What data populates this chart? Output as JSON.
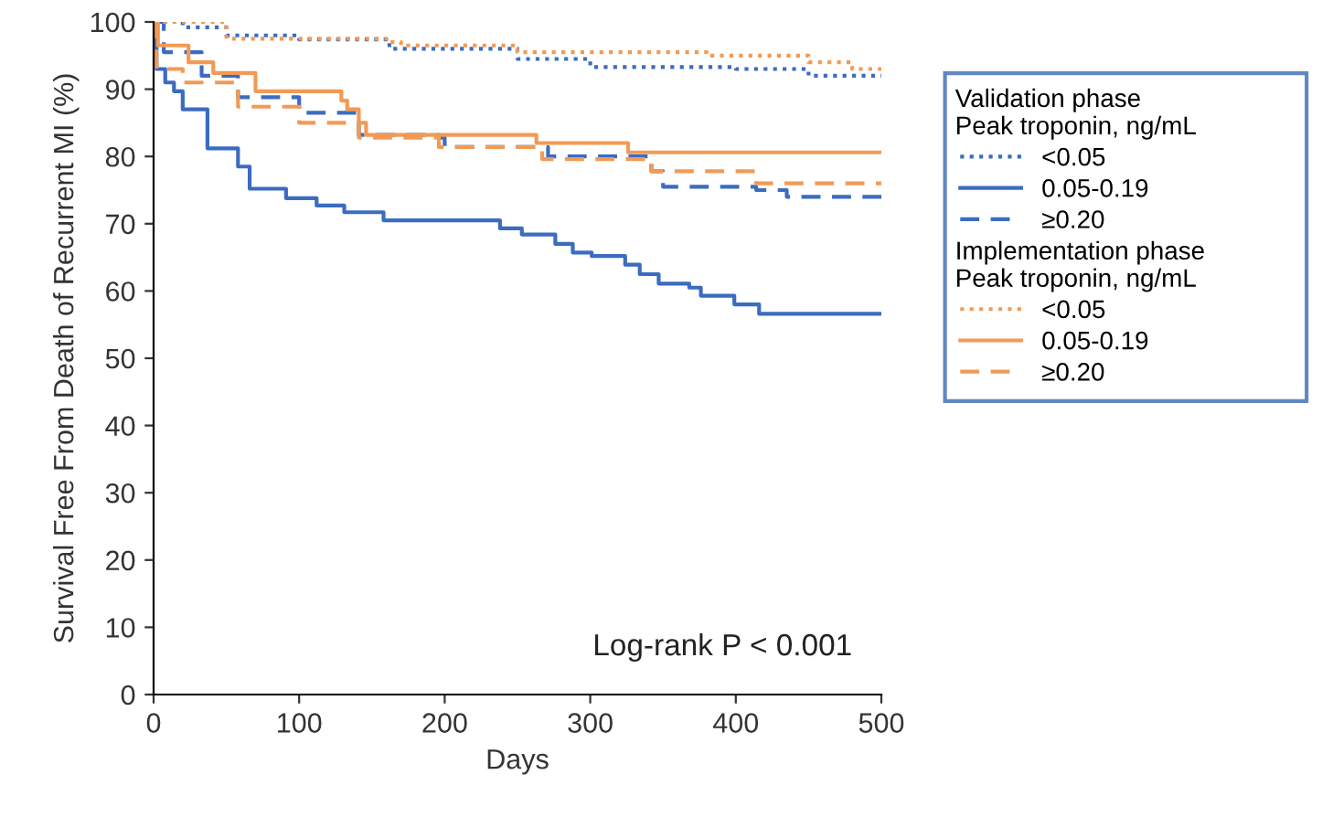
{
  "chart_data": {
    "type": "step",
    "xlabel": "Days",
    "ylabel": "Survival Free From Death of Recurrent MI (%)",
    "xlim": [
      0,
      500
    ],
    "xticks": [
      0,
      100,
      200,
      300,
      400,
      500
    ],
    "ylim": [
      0,
      100
    ],
    "yticks": [
      0,
      10,
      20,
      30,
      40,
      50,
      60,
      70,
      80,
      90,
      100
    ],
    "grid": false,
    "legend": "right",
    "annotations": [
      "Validation phase\nPeak troponin, ng/mL",
      "Implementation phase\nPeak troponin, ng/mL",
      "Log-rank P < 0.001"
    ],
    "series": [
      {
        "name": "<0.05",
        "color": "#3b6cc0",
        "line_style": "dotted",
        "x": [
          0,
          20,
          50,
          100,
          162,
          250,
          300,
          400,
          450,
          500
        ],
        "values": [
          100,
          99.2,
          98,
          97.4,
          96,
          94.5,
          93.3,
          93,
          92,
          92
        ]
      },
      {
        "name": "0.05-0.19",
        "color": "#3b6cc0",
        "line_style": "solid",
        "x": [
          0,
          2,
          8,
          14,
          20,
          37,
          58,
          66,
          91,
          112,
          131,
          158,
          238,
          253,
          276,
          288,
          301,
          324,
          334,
          347,
          368,
          376,
          399,
          416,
          500
        ],
        "values": [
          100,
          93,
          91,
          89.7,
          87,
          81.2,
          78.5,
          75.2,
          73.8,
          72.7,
          71.7,
          70.5,
          69.3,
          68.4,
          67,
          65.7,
          65.2,
          63.9,
          62.5,
          61.1,
          60.5,
          59.3,
          58,
          56.6,
          56.6
        ]
      },
      {
        "name": "≥0.20",
        "color": "#3b6cc0",
        "line_style": "dashed",
        "x": [
          0,
          7,
          33,
          58,
          100,
          141,
          196,
          200,
          271,
          342,
          350,
          414,
          435,
          500
        ],
        "values": [
          100,
          95.5,
          92,
          88.8,
          86.5,
          83.2,
          82.8,
          81.4,
          80,
          77.8,
          75.5,
          75,
          74,
          74
        ]
      },
      {
        "name": "<0.05",
        "color": "#f29a55",
        "line_style": "dotted",
        "x": [
          0,
          50,
          160,
          170,
          250,
          380,
          450,
          480,
          500
        ],
        "values": [
          100,
          97.5,
          97,
          96.5,
          95.5,
          95,
          94,
          93,
          93
        ]
      },
      {
        "name": "0.05-0.19",
        "color": "#f29a55",
        "line_style": "solid",
        "x": [
          0,
          3,
          24,
          41,
          70,
          129,
          133,
          141,
          146,
          263,
          326,
          500
        ],
        "values": [
          100,
          96.5,
          94,
          92.4,
          89.7,
          88.3,
          87,
          85,
          83.2,
          82,
          80.6,
          80.6
        ]
      },
      {
        "name": "≥0.20",
        "color": "#f29a55",
        "line_style": "dashed",
        "x": [
          0,
          2,
          20,
          58,
          100,
          141,
          196,
          267,
          342,
          414,
          500
        ],
        "values": [
          100,
          93,
          91,
          87.4,
          85,
          82.8,
          81.4,
          79.6,
          77.8,
          76,
          76
        ]
      }
    ]
  }
}
